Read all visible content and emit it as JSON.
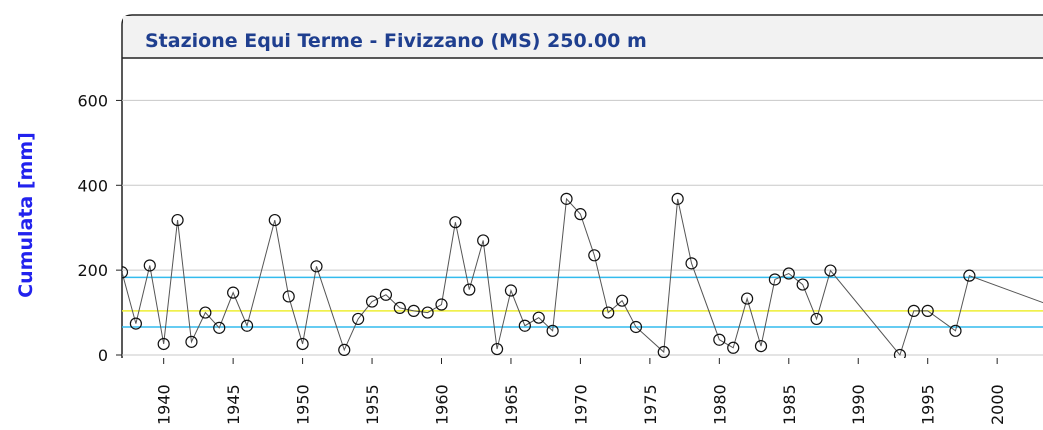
{
  "chart_data": {
    "type": "line",
    "title": "Stazione Equi Terme - Fivizzano (MS) 250.00 m",
    "y_label": "Cumulata [mm]",
    "x": [
      1937,
      1938,
      1939,
      1940,
      1941,
      1942,
      1943,
      1944,
      1945,
      1946,
      1948,
      1949,
      1950,
      1951,
      1953,
      1954,
      1955,
      1956,
      1957,
      1958,
      1959,
      1960,
      1961,
      1962,
      1963,
      1964,
      1965,
      1966,
      1967,
      1968,
      1969,
      1970,
      1971,
      1972,
      1973,
      1974,
      1976,
      1977,
      1978,
      1980,
      1981,
      1982,
      1983,
      1984,
      1985,
      1986,
      1987,
      1988,
      1993,
      1994,
      1995,
      1997,
      1998,
      2004
    ],
    "series": [
      {
        "color": "#555555",
        "values": [
          195,
          74,
          211,
          26,
          318,
          31,
          100,
          64,
          147,
          69,
          318,
          138,
          26,
          209,
          12,
          85,
          126,
          142,
          111,
          104,
          100,
          119,
          313,
          154,
          270,
          14,
          152,
          69,
          88,
          57,
          368,
          332,
          235,
          100,
          128,
          66,
          7,
          368,
          216,
          36,
          17,
          133,
          21,
          178,
          192,
          166,
          85,
          199,
          0,
          104,
          104,
          57,
          187,
          115
        ]
      }
    ],
    "reference_lines": [
      {
        "value": 183,
        "color": "#33bbee"
      },
      {
        "value": 104,
        "color": "#eeee33"
      },
      {
        "value": 66,
        "color": "#33bbee"
      }
    ],
    "xlim": [
      1937,
      2003.3
    ],
    "ylim": [
      0,
      700
    ],
    "xticks": [
      1940,
      1945,
      1950,
      1955,
      1960,
      1965,
      1970,
      1975,
      1980,
      1985,
      1990,
      1995,
      2000
    ],
    "yticks": [
      0,
      200,
      400,
      600
    ],
    "grid": true
  }
}
